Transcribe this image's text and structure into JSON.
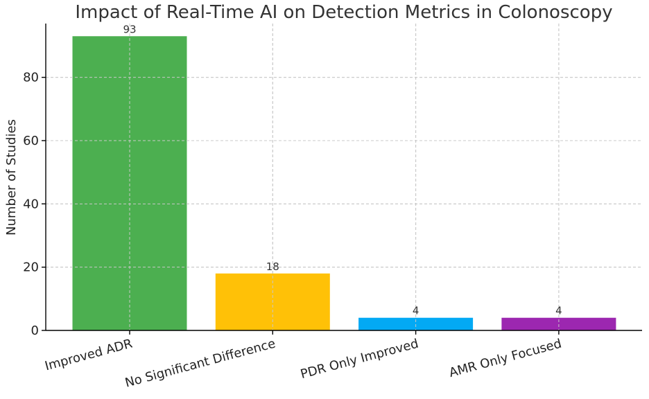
{
  "chart_data": {
    "type": "bar",
    "title": "Impact of Real-Time AI on Detection Metrics in Colonoscopy",
    "xlabel": "",
    "ylabel": "Number of Studies",
    "categories": [
      "Improved ADR",
      "No Significant Difference",
      "PDR Only Improved",
      "AMR Only Focused"
    ],
    "values": [
      93,
      18,
      4,
      4
    ],
    "data_labels": [
      "93",
      "18",
      "4",
      "4"
    ],
    "colors": [
      "#4caf50",
      "#ffc107",
      "#03a9f4",
      "#9c27b0"
    ],
    "ylim": [
      0,
      97
    ],
    "yticks": [
      0,
      20,
      40,
      60,
      80
    ],
    "ytick_labels": [
      "0",
      "20",
      "40",
      "60",
      "80"
    ],
    "grid": true,
    "legend": "none"
  }
}
